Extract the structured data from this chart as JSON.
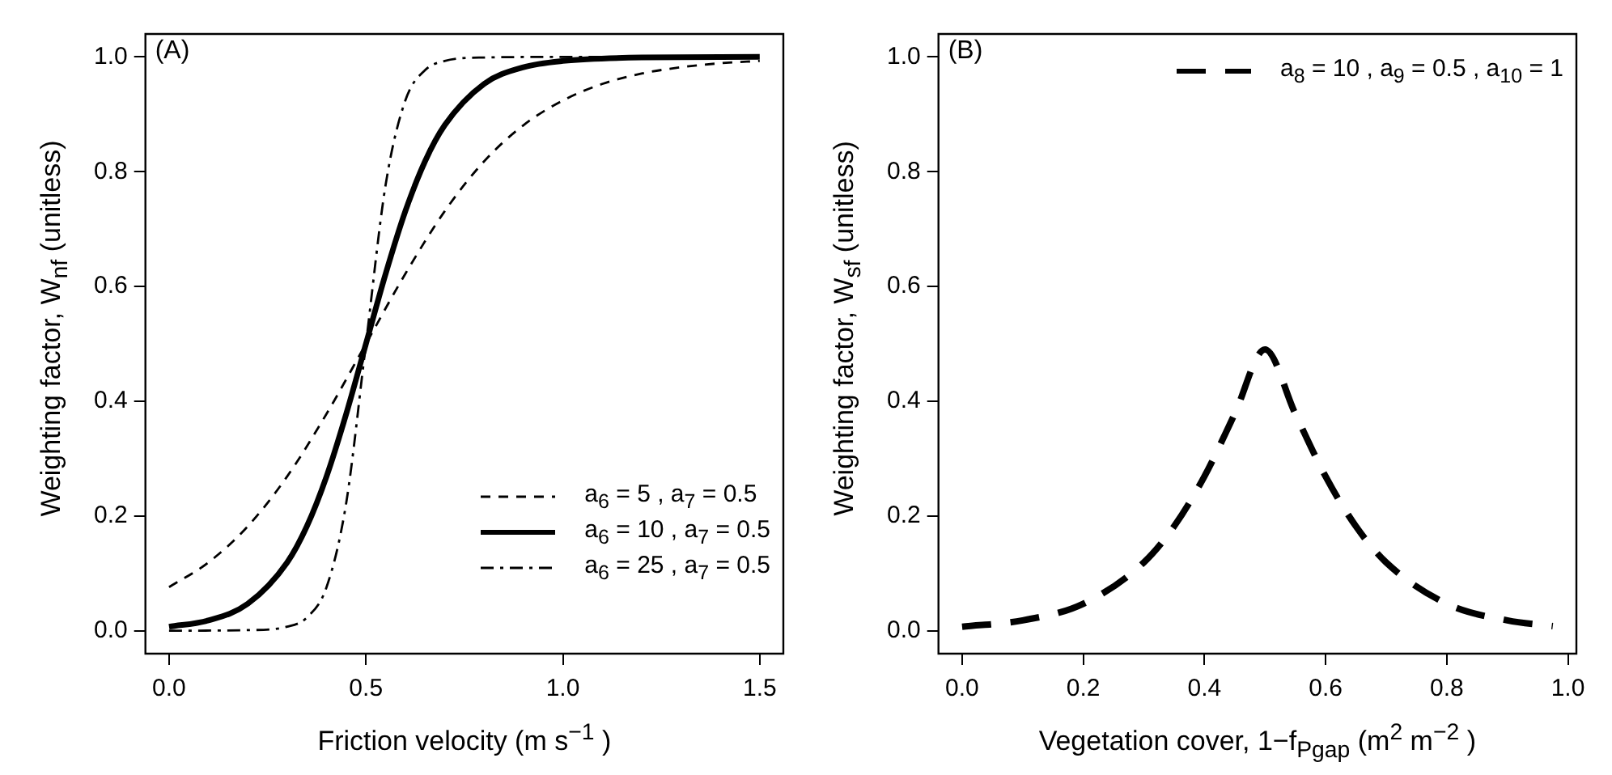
{
  "chart_data": [
    {
      "type": "line",
      "title": "(A)",
      "xlabel": "Friction velocity (m s$^{−1}$ )",
      "ylabel": "Weighting factor, W$_{nf}$ (unitless)",
      "xlim": [
        -0.06,
        1.56
      ],
      "ylim": [
        -0.04,
        1.04
      ],
      "xticks": [
        {
          "value": 0,
          "label": "0.0"
        },
        {
          "value": 0.5,
          "label": "0.5"
        },
        {
          "value": 1,
          "label": "1.0"
        },
        {
          "value": 1.5,
          "label": "1.5"
        }
      ],
      "yticks": [
        {
          "value": 0,
          "label": "0.0"
        },
        {
          "value": 0.2,
          "label": "0.2"
        },
        {
          "value": 0.4,
          "label": "0.4"
        },
        {
          "value": 0.6,
          "label": "0.6"
        },
        {
          "value": 0.8,
          "label": "0.8"
        },
        {
          "value": 1,
          "label": "1.0"
        }
      ],
      "grid": false,
      "legend": "bottom right",
      "series": [
        {
          "name": "a$_{6}$ = 5 , a$_{7}$ = 0.5",
          "color": "#000000",
          "line_style": "dashed",
          "x": [
            0,
            0.1,
            0.2,
            0.3,
            0.4,
            0.5,
            0.6,
            0.7,
            0.8,
            0.9,
            1.0,
            1.1,
            1.2,
            1.3,
            1.4,
            1.5
          ],
          "values": [
            0.076,
            0.119,
            0.182,
            0.269,
            0.378,
            0.5,
            0.622,
            0.731,
            0.818,
            0.881,
            0.924,
            0.953,
            0.971,
            0.982,
            0.989,
            0.993
          ]
        },
        {
          "name": "a$_{6}$ = 10 , a$_{7}$ = 0.5",
          "color": "#000000",
          "line_style": "solid",
          "x": [
            0,
            0.1,
            0.2,
            0.3,
            0.35,
            0.4,
            0.45,
            0.5,
            0.55,
            0.6,
            0.65,
            0.7,
            0.8,
            0.9,
            1.0,
            1.2,
            1.5
          ],
          "values": [
            0.007,
            0.018,
            0.047,
            0.119,
            0.182,
            0.269,
            0.378,
            0.5,
            0.622,
            0.731,
            0.818,
            0.881,
            0.953,
            0.982,
            0.993,
            0.999,
            1.0
          ]
        },
        {
          "name": "a$_{6}$ = 25 , a$_{7}$ = 0.5",
          "color": "#000000",
          "line_style": "dashdot",
          "x": [
            0,
            0.2,
            0.3,
            0.35,
            0.4,
            0.45,
            0.5,
            0.55,
            0.6,
            0.65,
            0.7,
            0.8,
            1.0,
            1.5
          ],
          "values": [
            0.0,
            0.001,
            0.007,
            0.023,
            0.076,
            0.223,
            0.5,
            0.777,
            0.924,
            0.977,
            0.993,
            0.999,
            1.0,
            1.0
          ]
        }
      ]
    },
    {
      "type": "line",
      "title": "(B)",
      "xlabel": "Vegetation cover,  1−f$_{Pgap}$ (m$^{2}$ m$^{−2}$ )",
      "ylabel": "Weighting factor, W$_{sf}$ (unitless)",
      "xlim": [
        -0.039,
        1.014
      ],
      "ylim": [
        -0.04,
        1.04
      ],
      "xticks": [
        {
          "value": 0,
          "label": "0.0"
        },
        {
          "value": 0.2,
          "label": "0.2"
        },
        {
          "value": 0.4,
          "label": "0.4"
        },
        {
          "value": 0.6,
          "label": "0.6"
        },
        {
          "value": 0.8,
          "label": "0.8"
        },
        {
          "value": 1,
          "label": "1.0"
        }
      ],
      "yticks": [
        {
          "value": 0,
          "label": "0.0"
        },
        {
          "value": 0.2,
          "label": "0.2"
        },
        {
          "value": 0.4,
          "label": "0.4"
        },
        {
          "value": 0.6,
          "label": "0.6"
        },
        {
          "value": 0.8,
          "label": "0.8"
        },
        {
          "value": 1,
          "label": "1.0"
        }
      ],
      "grid": false,
      "legend": "top right",
      "series": [
        {
          "name": "a$_{8}$ = 10 , a$_{9}$ = 0.5 , a$_{10}$ = 1",
          "color": "#000000",
          "line_style": "longdash",
          "x": [
            0,
            0.1,
            0.2,
            0.3,
            0.35,
            0.4,
            0.45,
            0.5,
            0.55,
            0.6,
            0.65,
            0.7,
            0.8,
            0.9,
            0.975
          ],
          "values": [
            0.007,
            0.018,
            0.047,
            0.119,
            0.182,
            0.269,
            0.378,
            0.49,
            0.378,
            0.269,
            0.182,
            0.119,
            0.047,
            0.018,
            0.008
          ]
        }
      ]
    }
  ]
}
